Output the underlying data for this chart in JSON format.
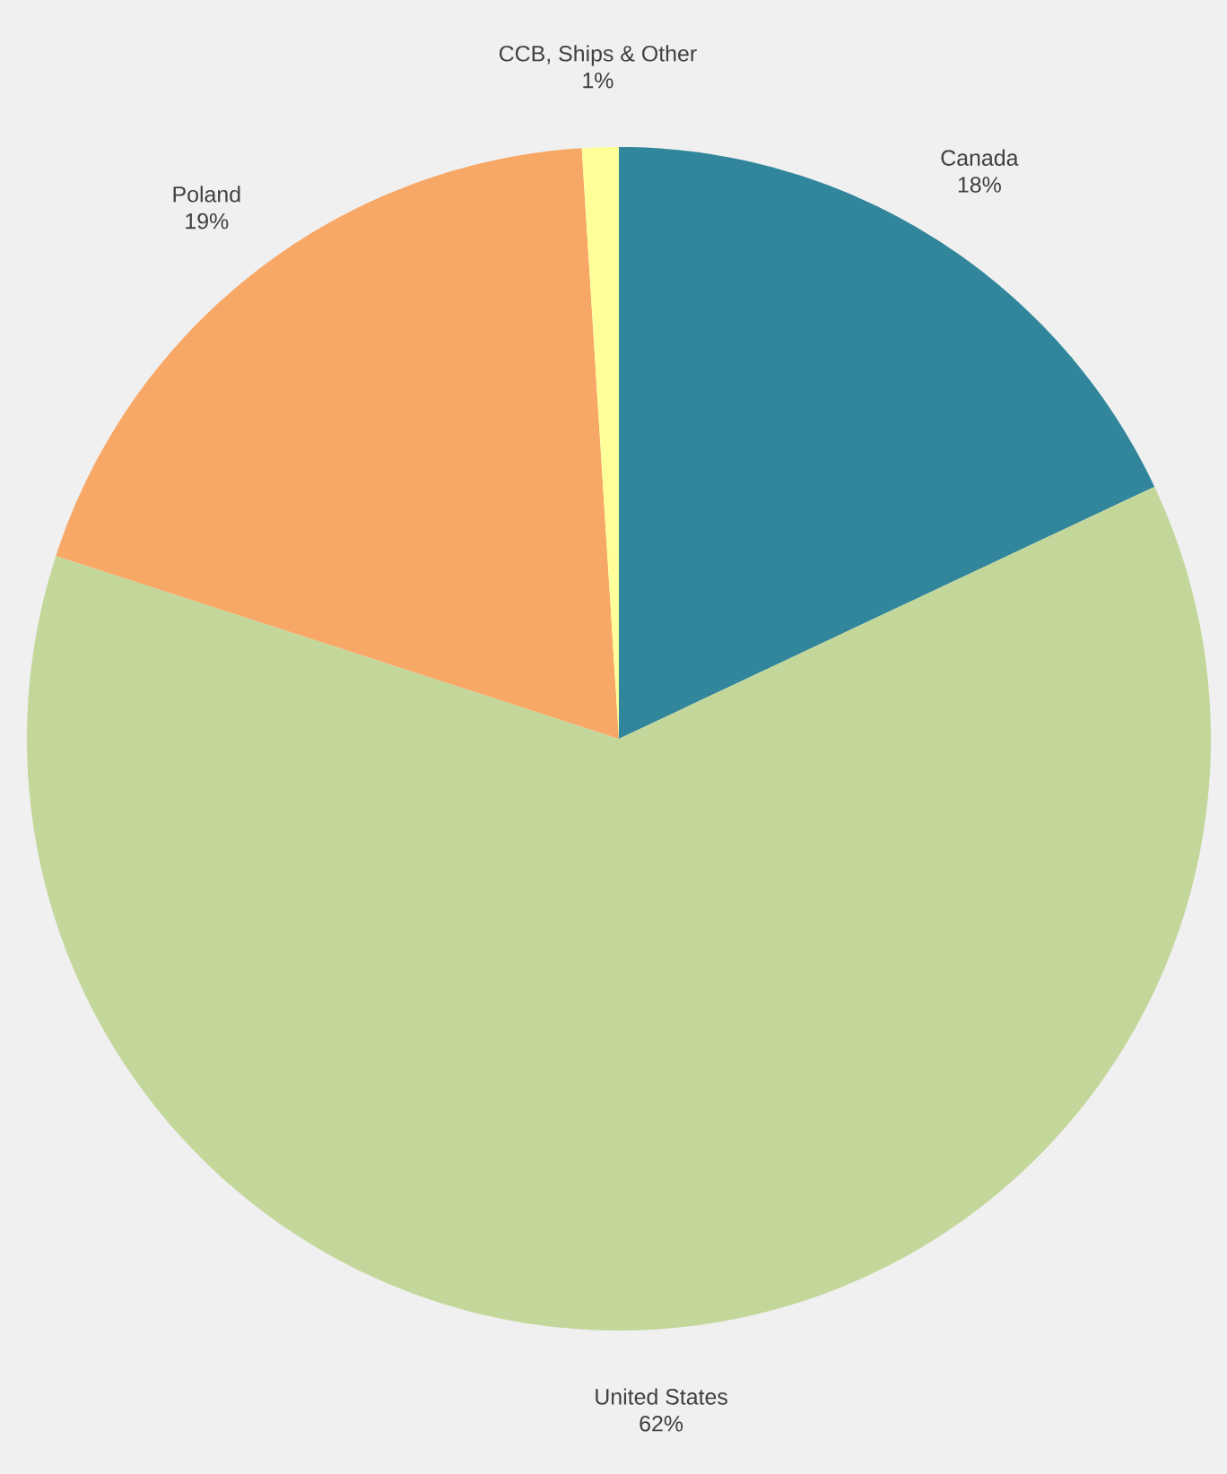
{
  "chart_data": {
    "type": "pie",
    "categories": [
      "Canada",
      "United States",
      "Poland",
      "CCB, Ships & Other"
    ],
    "values": [
      18,
      62,
      19,
      1
    ],
    "value_labels": [
      "18%",
      "62%",
      "19%",
      "1%"
    ],
    "colors": [
      "#31869b",
      "#c4d79b",
      "#f8a866",
      "#ffff99"
    ]
  }
}
